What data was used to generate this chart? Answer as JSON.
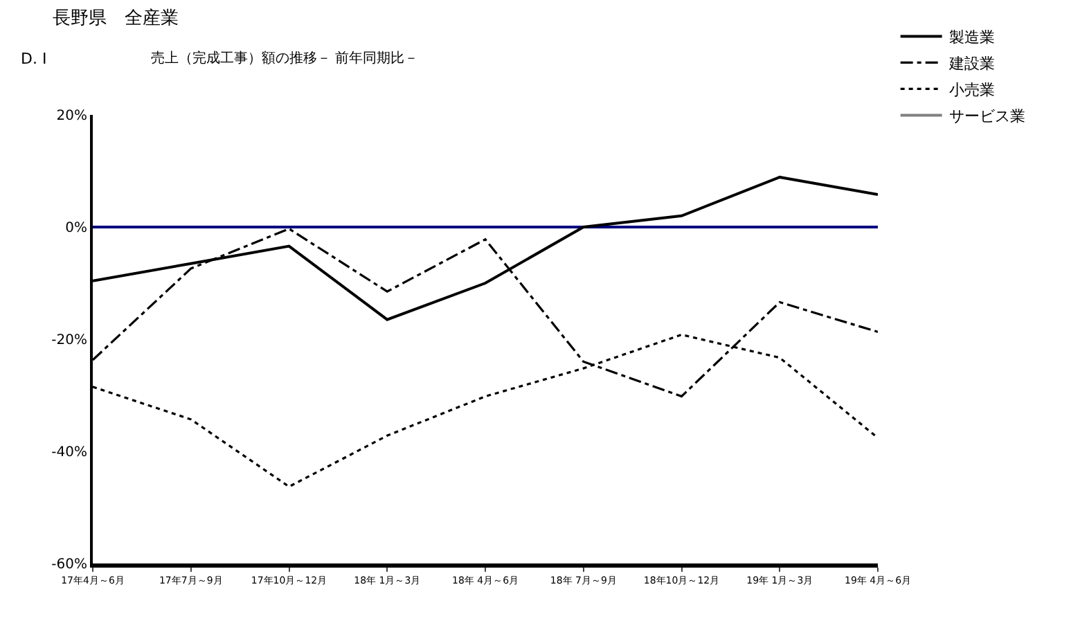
{
  "chart_data": {
    "type": "line",
    "title": "長野県　全産業",
    "subtitle": "売上（完成工事）額の推移－ 前年同期比－",
    "ylabel": "D. I",
    "categories": [
      "17年4月～6月",
      "17年7月～9月",
      "17年10月～12月",
      "18年 1月～3月",
      "18年 4月～6月",
      "18年 7月～9月",
      "18年10月～12月",
      "19年 1月～3月",
      "19年 4月～6月"
    ],
    "series": [
      {
        "name": "製造業",
        "color": "#000000",
        "line_style": "solid",
        "values": [
          -9.6,
          -6.5,
          -3.4,
          -16.5,
          -10,
          0,
          2,
          8.9,
          5.8
        ]
      },
      {
        "name": "建設業",
        "color": "#000000",
        "line_style": "dashdot",
        "values": [
          -23.7,
          -7.4,
          -0.3,
          -11.5,
          -2.2,
          -24,
          -30.2,
          -13.4,
          -18.7
        ]
      },
      {
        "name": "小売業",
        "color": "#000000",
        "line_style": "dotted",
        "values": [
          -28.5,
          -34.3,
          -46.3,
          -37.2,
          -30.2,
          -25.2,
          -19.2,
          -23.3,
          -37.6
        ]
      },
      {
        "name": "サービス業",
        "color": "#808080",
        "line_style": "solid",
        "values": [
          null,
          null,
          null,
          null,
          null,
          null,
          null,
          null,
          null
        ]
      }
    ],
    "ylim": [
      -60,
      20
    ],
    "yticks": [
      {
        "value": 20,
        "label": "20%"
      },
      {
        "value": 0,
        "label": "0%"
      },
      {
        "value": -20,
        "label": "-20%"
      },
      {
        "value": -40,
        "label": "-40%"
      },
      {
        "value": -60,
        "label": "-60%"
      }
    ],
    "ref_lines": [
      {
        "axis": "y",
        "value": 0,
        "color": "#000080"
      }
    ],
    "grid": false,
    "legend": "top right",
    "marker": "none"
  }
}
